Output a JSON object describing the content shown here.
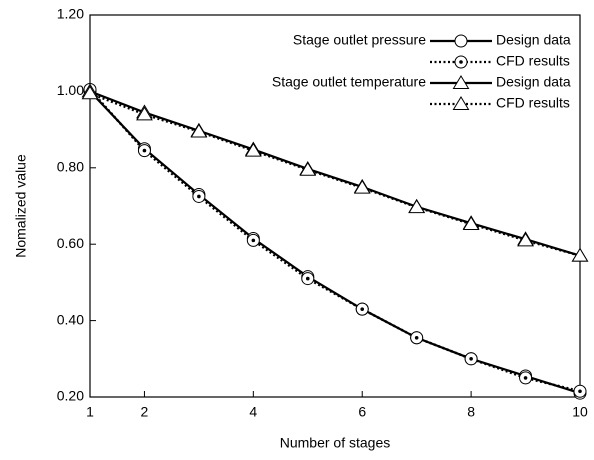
{
  "chart_data": {
    "type": "line",
    "x_label": "Number of stages",
    "y_label": "Nomalized value",
    "x": [
      1,
      2,
      3,
      4,
      5,
      6,
      7,
      8,
      9,
      10
    ],
    "xlim": [
      1,
      10
    ],
    "xticks": [
      1,
      2,
      4,
      6,
      8,
      10
    ],
    "ylim": [
      0.2,
      1.2
    ],
    "yticks": [
      {
        "value": 0.2,
        "label": "0.20"
      },
      {
        "value": 0.4,
        "label": "0.40"
      },
      {
        "value": 0.6,
        "label": "0.60"
      },
      {
        "value": 0.8,
        "label": "0.80"
      },
      {
        "value": 1.0,
        "label": "1.00"
      },
      {
        "value": 1.2,
        "label": "1.20"
      }
    ],
    "legend_groups": [
      "Stage outlet pressure",
      "Stage outlet temperature"
    ],
    "series": [
      {
        "name": "Design data",
        "color": "#000000",
        "marker": "circle",
        "dash": "solid",
        "values": [
          1.0,
          0.85,
          0.73,
          0.615,
          0.515,
          0.43,
          0.355,
          0.3,
          0.255,
          0.21
        ]
      },
      {
        "name": "CFD results",
        "color": "#000000",
        "marker": "circle-dot",
        "dash": "dotted",
        "values": [
          1.005,
          0.845,
          0.725,
          0.61,
          0.51,
          0.43,
          0.355,
          0.3,
          0.25,
          0.215
        ]
      },
      {
        "name": "Design data",
        "color": "#000000",
        "marker": "triangle",
        "dash": "solid",
        "values": [
          1.0,
          0.945,
          0.897,
          0.848,
          0.797,
          0.75,
          0.698,
          0.655,
          0.613,
          0.57
        ]
      },
      {
        "name": "CFD results",
        "color": "#000000",
        "marker": "triangle",
        "dash": "dotted",
        "values": [
          0.995,
          0.94,
          0.895,
          0.845,
          0.795,
          0.748,
          0.697,
          0.653,
          0.61,
          0.57
        ]
      }
    ]
  }
}
